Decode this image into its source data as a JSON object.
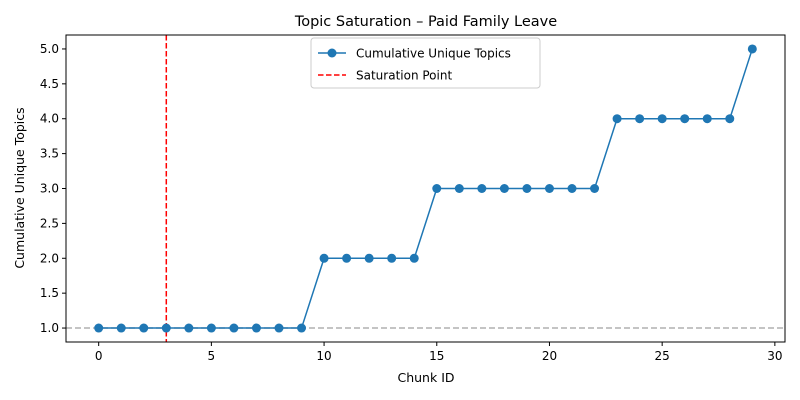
{
  "chart_data": {
    "type": "line",
    "title": "Topic Saturation – Paid Family Leave",
    "xlabel": "Chunk ID",
    "ylabel": "Cumulative Unique Topics",
    "xlim": [
      -1.45,
      30.45
    ],
    "ylim": [
      0.8,
      5.2
    ],
    "xticks": [
      0,
      5,
      10,
      15,
      20,
      25,
      30
    ],
    "yticks": [
      1.0,
      1.5,
      2.0,
      2.5,
      3.0,
      3.5,
      4.0,
      4.5,
      5.0
    ],
    "grid": false,
    "legend_position": "top-center",
    "series": [
      {
        "name": "Cumulative Unique Topics",
        "color": "#1f77b4",
        "x": [
          0,
          1,
          2,
          3,
          4,
          5,
          6,
          7,
          8,
          9,
          10,
          11,
          12,
          13,
          14,
          15,
          16,
          17,
          18,
          19,
          20,
          21,
          22,
          23,
          24,
          25,
          26,
          27,
          28,
          29
        ],
        "values": [
          1,
          1,
          1,
          1,
          1,
          1,
          1,
          1,
          1,
          1,
          2,
          2,
          2,
          2,
          2,
          3,
          3,
          3,
          3,
          3,
          3,
          3,
          3,
          4,
          4,
          4,
          4,
          4,
          4,
          5
        ]
      }
    ],
    "vline": {
      "name": "Saturation Point",
      "x": 3,
      "color": "#ff0000"
    },
    "hline": {
      "y": 1.0,
      "color": "#b0b0b0"
    }
  }
}
